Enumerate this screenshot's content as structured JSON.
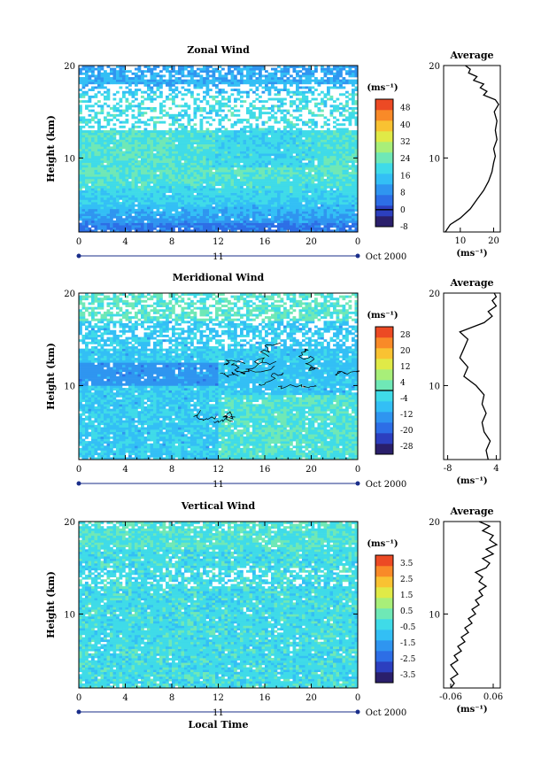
{
  "chart_data": [
    {
      "type": "heatmap",
      "title": "Zonal Wind",
      "ylabel": "Height (km)",
      "ylim": [
        2,
        20
      ],
      "xlim": [
        0,
        24
      ],
      "x_ticks": [
        "0",
        "4",
        "8",
        "12",
        "16",
        "20",
        "0"
      ],
      "y_ticks": [
        "10",
        "20"
      ],
      "day_label": "11",
      "date_label": "Oct 2000",
      "colorbar": {
        "unit": "(ms⁻¹)",
        "labels": [
          "48",
          "40",
          "32",
          "24",
          "16",
          "8",
          "0",
          "-8"
        ],
        "min": -8,
        "max": 52,
        "black_line_at": 0
      },
      "profile": {
        "title": "Average",
        "xlabel": "(ms⁻¹)",
        "x_ticks": [
          "10",
          "20"
        ],
        "xlim": [
          5,
          22
        ],
        "y_ticks": [
          "10",
          "20"
        ],
        "points": [
          [
            5.5,
            2.0
          ],
          [
            7,
            2.8
          ],
          [
            10,
            3.5
          ],
          [
            13,
            4.5
          ],
          [
            15,
            5.5
          ],
          [
            17,
            6.5
          ],
          [
            18.5,
            7.5
          ],
          [
            19.5,
            8.5
          ],
          [
            20,
            9.5
          ],
          [
            20.5,
            10.2
          ],
          [
            20,
            11
          ],
          [
            21,
            12
          ],
          [
            20.5,
            13
          ],
          [
            21,
            14
          ],
          [
            20.2,
            15
          ],
          [
            21.5,
            15.8
          ],
          [
            20.5,
            16.3
          ],
          [
            17,
            16.8
          ],
          [
            18,
            17.2
          ],
          [
            16,
            17.6
          ],
          [
            17,
            18
          ],
          [
            14,
            18.4
          ],
          [
            15,
            18.8
          ],
          [
            12.5,
            19.2
          ],
          [
            13,
            19.6
          ],
          [
            11.5,
            20
          ]
        ]
      }
    },
    {
      "type": "heatmap",
      "title": "Meridional Wind",
      "ylabel": "Height (km)",
      "ylim": [
        2,
        20
      ],
      "xlim": [
        0,
        24
      ],
      "x_ticks": [
        "0",
        "4",
        "8",
        "12",
        "16",
        "20",
        "0"
      ],
      "y_ticks": [
        "10",
        "20"
      ],
      "day_label": "11",
      "date_label": "Oct 2000",
      "colorbar": {
        "unit": "(ms⁻¹)",
        "labels": [
          "28",
          "20",
          "12",
          "4",
          "-4",
          "-12",
          "-20",
          "-28"
        ],
        "min": -32,
        "max": 32,
        "black_line_at": 0
      },
      "profile": {
        "title": "Average",
        "xlabel": "(ms⁻¹)",
        "x_ticks": [
          "-8",
          "4"
        ],
        "xlim": [
          -9,
          5
        ],
        "y_ticks": [
          "10",
          "20"
        ],
        "points": [
          [
            2,
            2.0
          ],
          [
            1.5,
            3
          ],
          [
            2.5,
            4
          ],
          [
            1,
            5
          ],
          [
            0.5,
            6
          ],
          [
            1.5,
            7
          ],
          [
            0.5,
            8
          ],
          [
            1,
            9
          ],
          [
            -1,
            10
          ],
          [
            -4,
            11
          ],
          [
            -3,
            12
          ],
          [
            -5,
            13
          ],
          [
            -4,
            14
          ],
          [
            -3,
            15
          ],
          [
            -5,
            15.8
          ],
          [
            -2,
            16.3
          ],
          [
            1,
            16.8
          ],
          [
            3,
            17.5
          ],
          [
            2,
            18
          ],
          [
            4,
            18.6
          ],
          [
            3,
            19.2
          ],
          [
            4,
            19.6
          ],
          [
            3.5,
            20
          ]
        ]
      }
    },
    {
      "type": "heatmap",
      "title": "Vertical Wind",
      "ylabel": "Height (km)",
      "ylim": [
        2,
        20
      ],
      "xlim": [
        0,
        24
      ],
      "x_ticks": [
        "0",
        "4",
        "8",
        "12",
        "16",
        "20",
        "0"
      ],
      "y_ticks": [
        "10",
        "20"
      ],
      "day_label": "11",
      "date_label": "Oct 2000",
      "xlabel": "Local Time",
      "colorbar": {
        "unit": "(ms⁻¹)",
        "labels": [
          "3.5",
          "2.5",
          "1.5",
          "0.5",
          "-0.5",
          "-1.5",
          "-2.5",
          "-3.5"
        ],
        "min": -4,
        "max": 4,
        "black_line_at": null
      },
      "profile": {
        "title": "Average",
        "xlabel": "(ms⁻¹)",
        "x_ticks": [
          "-0.06",
          "0.06"
        ],
        "xlim": [
          -0.08,
          0.08
        ],
        "y_ticks": [
          "10",
          "20"
        ],
        "points": [
          [
            -0.06,
            2.0
          ],
          [
            -0.05,
            2.5
          ],
          [
            -0.06,
            3
          ],
          [
            -0.04,
            3.5
          ],
          [
            -0.05,
            4
          ],
          [
            -0.06,
            4.5
          ],
          [
            -0.04,
            5
          ],
          [
            -0.05,
            5.5
          ],
          [
            -0.03,
            6
          ],
          [
            -0.04,
            6.5
          ],
          [
            -0.02,
            7
          ],
          [
            -0.03,
            7.5
          ],
          [
            -0.01,
            8
          ],
          [
            -0.02,
            8.5
          ],
          [
            0.0,
            9
          ],
          [
            -0.01,
            9.5
          ],
          [
            0.01,
            10
          ],
          [
            0.0,
            10.5
          ],
          [
            0.02,
            11
          ],
          [
            0.01,
            11.5
          ],
          [
            0.03,
            12
          ],
          [
            0.02,
            12.5
          ],
          [
            0.04,
            13
          ],
          [
            0.02,
            13.5
          ],
          [
            0.03,
            14
          ],
          [
            0.01,
            14.5
          ],
          [
            0.04,
            15
          ],
          [
            0.05,
            15.5
          ],
          [
            0.03,
            16
          ],
          [
            0.06,
            16.5
          ],
          [
            0.04,
            17
          ],
          [
            0.07,
            17.5
          ],
          [
            0.05,
            18
          ],
          [
            0.06,
            18.5
          ],
          [
            0.03,
            19
          ],
          [
            0.05,
            19.5
          ],
          [
            0.02,
            20
          ]
        ]
      }
    }
  ]
}
